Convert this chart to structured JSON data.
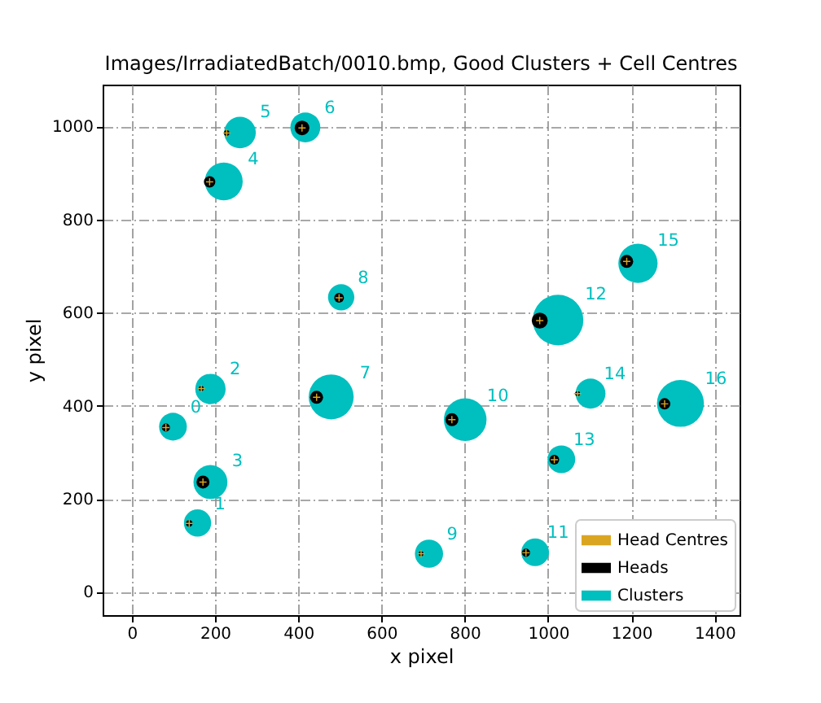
{
  "chart_data": {
    "type": "scatter",
    "title": "Images/IrradiatedBatch/0010.bmp, Good Clusters + Cell Centres",
    "xlabel": "x pixel",
    "ylabel": "y pixel",
    "xlim": [
      -70,
      1460
    ],
    "ylim": [
      -50,
      1090
    ],
    "xticks": [
      0,
      200,
      400,
      600,
      800,
      1000,
      1200,
      1400
    ],
    "yticks": [
      0,
      200,
      400,
      600,
      800,
      1000
    ],
    "grid": true,
    "legend": "bottom right",
    "series": [
      {
        "name": "Head Centres",
        "marker": "cross",
        "color": "#daa520",
        "x": [
          82,
          138,
          167,
          171,
          187,
          228,
          409,
          444,
          498,
          695,
          769,
          947,
          980,
          1015,
          1071,
          1189,
          1280
        ],
        "values": [
          353,
          147,
          437,
          236,
          881,
          986,
          997,
          418,
          632,
          82,
          370,
          84,
          583,
          284,
          426,
          710,
          404
        ]
      },
      {
        "name": "Heads",
        "type": "bubble",
        "marker": "circle",
        "color": "#000000",
        "x": [
          82,
          138,
          167,
          171,
          187,
          228,
          409,
          444,
          498,
          695,
          769,
          947,
          980,
          1015,
          1071,
          1189,
          1280
        ],
        "values": [
          353,
          147,
          437,
          236,
          881,
          986,
          997,
          418,
          632,
          82,
          370,
          84,
          583,
          284,
          426,
          710,
          404
        ],
        "sizes": [
          0.026,
          0.017,
          0.01,
          0.066,
          0.051,
          0.012,
          0.084,
          0.066,
          0.037,
          0.01,
          0.066,
          0.026,
          0.1,
          0.037,
          0.01,
          0.066,
          0.051
        ]
      },
      {
        "name": "Clusters",
        "type": "bubble",
        "marker": "circle",
        "color": "#00bfbf",
        "x": [
          99,
          158,
          189,
          189,
          221,
          260,
          417,
          479,
          503,
          714,
          801,
          969,
          1024,
          1032,
          1102,
          1216,
          1318
        ],
        "values": [
          355,
          148,
          436,
          236,
          882,
          987,
          998,
          419,
          633,
          82,
          370,
          85,
          584,
          285,
          426,
          706,
          405
        ],
        "sizes": [
          0.3,
          0.29,
          0.36,
          0.45,
          0.56,
          0.39,
          0.35,
          0.79,
          0.27,
          0.31,
          0.71,
          0.3,
          1,
          0.3,
          0.35,
          0.6,
          0.86
        ]
      }
    ],
    "annotations": [
      {
        "text": "0",
        "x": 99,
        "y": 355
      },
      {
        "text": "1",
        "x": 158,
        "y": 148
      },
      {
        "text": "2",
        "x": 189,
        "y": 436
      },
      {
        "text": "3",
        "x": 189,
        "y": 236
      },
      {
        "text": "4",
        "x": 221,
        "y": 882
      },
      {
        "text": "5",
        "x": 260,
        "y": 987
      },
      {
        "text": "6",
        "x": 417,
        "y": 998
      },
      {
        "text": "7",
        "x": 479,
        "y": 419
      },
      {
        "text": "8",
        "x": 503,
        "y": 633
      },
      {
        "text": "9",
        "x": 714,
        "y": 82
      },
      {
        "text": "10",
        "x": 801,
        "y": 370
      },
      {
        "text": "11",
        "x": 969,
        "y": 85
      },
      {
        "text": "12",
        "x": 1024,
        "y": 584
      },
      {
        "text": "13",
        "x": 1032,
        "y": 285
      },
      {
        "text": "14",
        "x": 1102,
        "y": 426
      },
      {
        "text": "15",
        "x": 1216,
        "y": 706
      },
      {
        "text": "16",
        "x": 1318,
        "y": 405
      }
    ]
  }
}
